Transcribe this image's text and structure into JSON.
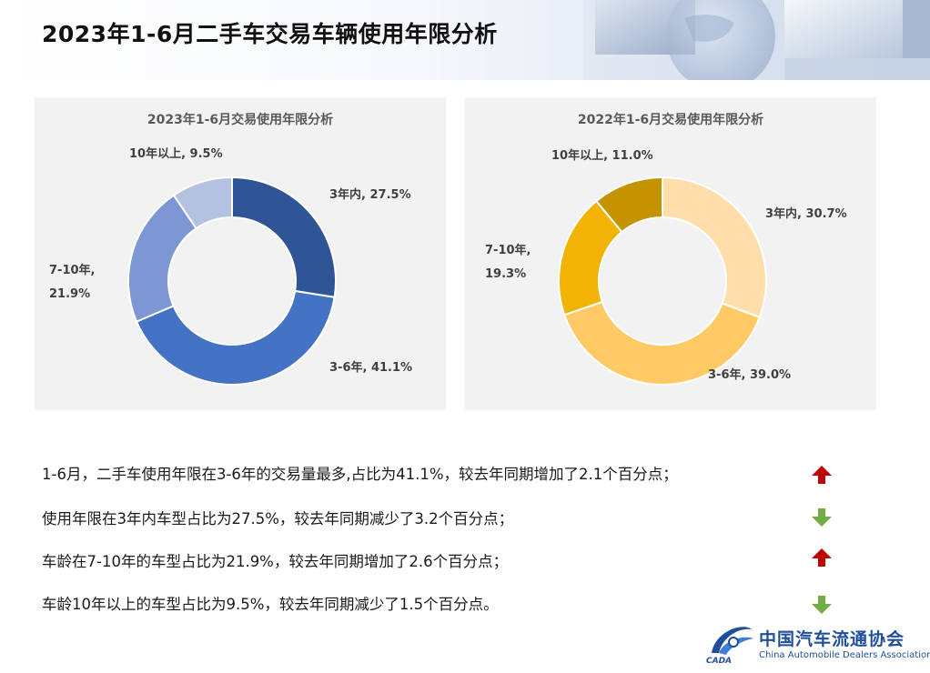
{
  "page": {
    "title": "2023年1-6月二手车交易车辆使用年限分析"
  },
  "colors": {
    "header_bg": "#e3eaf5",
    "panel_bg": "#f2f2f2",
    "arrow_up": "#c00000",
    "arrow_down": "#70ad47",
    "logo_blue": "#1f4e9c"
  },
  "chart_data": [
    {
      "type": "pie",
      "variant": "donut",
      "title": "2023年1-6月交易使用年限分析",
      "categories": [
        "3年内",
        "3-6年",
        "7-10年",
        "10年以上"
      ],
      "values": [
        27.5,
        41.1,
        21.9,
        9.5
      ],
      "unit": "%",
      "colors": [
        "#2f5597",
        "#4472c4",
        "#7d97d4",
        "#b4c2e2"
      ],
      "labels": [
        {
          "lines": [
            "3年内, 27.5%"
          ]
        },
        {
          "lines": [
            "3-6年, 41.1%"
          ]
        },
        {
          "lines": [
            "7-10年,",
            "21.9%"
          ]
        },
        {
          "lines": [
            "10年以上, 9.5%"
          ]
        }
      ],
      "legend": "none"
    },
    {
      "type": "pie",
      "variant": "donut",
      "title": "2022年1-6月交易使用年限分析",
      "categories": [
        "3年内",
        "3-6年",
        "7-10年",
        "10年以上"
      ],
      "values": [
        30.7,
        39.0,
        19.3,
        11.0
      ],
      "unit": "%",
      "colors": [
        "#ffdeab",
        "#ffc966",
        "#f2b304",
        "#c59300"
      ],
      "labels": [
        {
          "lines": [
            "3年内, 30.7%"
          ]
        },
        {
          "lines": [
            "3-6年, 39.0%"
          ]
        },
        {
          "lines": [
            "7-10年,",
            "19.3%"
          ]
        },
        {
          "lines": [
            "10年以上, 11.0%"
          ]
        }
      ],
      "legend": "none"
    }
  ],
  "notes": [
    {
      "text": "1-6月，二手车使用年限在3-6年的交易量最多,占比为41.1%，较去年同期增加了2.1个百分点；",
      "trend": "up"
    },
    {
      "text": "使用年限在3年内车型占比为27.5%，较去年同期减少了3.2个百分点；",
      "trend": "down"
    },
    {
      "text": "车龄在7-10年的车型占比为21.9%，较去年同期增加了2.6个百分点；",
      "trend": "up"
    },
    {
      "text": "车龄10年以上的车型占比为9.5%，较去年同期减少了1.5个百分点。",
      "trend": "down"
    }
  ],
  "logo": {
    "name_cn": "中国汽车流通协会",
    "name_en": "China Automobile Dealers Association",
    "abbr": "CADA"
  }
}
